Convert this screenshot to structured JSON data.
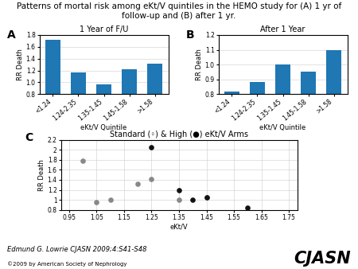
{
  "title": "Patterns of mortal risk among eKt/V quintiles in the HEMO study for (A) 1 yr of follow-up and (B) after 1 yr.",
  "annotations": [
    "Edmund G. Lowrie CJASN 2009;4:S41-S48",
    "CJASN",
    "©2009 by American Society of Nephrology"
  ],
  "chart_data": [
    {
      "type": "bar",
      "title": "1 Year of F/U",
      "annotations": [
        "A"
      ],
      "xlabel": "eKt/V Quintile",
      "ylabel": "RR Death",
      "categories": [
        "<1.24",
        "1.24-2.35",
        "1.35-1.45",
        "1.45-1.58",
        ">1.58"
      ],
      "values": [
        1.72,
        1.17,
        0.97,
        1.22,
        1.32
      ],
      "ylim": [
        0.8,
        1.8
      ],
      "yticks": [
        0.8,
        1.0,
        1.2,
        1.4,
        1.6,
        1.8
      ],
      "grid": "y"
    },
    {
      "type": "bar",
      "title": "After 1 Year",
      "annotations": [
        "B"
      ],
      "xlabel": "eKt/V Quintile",
      "ylabel": "RR Death",
      "categories": [
        "<1.24",
        "1.24-2.35",
        "1.35-1.45",
        "1.45-1.58",
        ">1.58"
      ],
      "values": [
        0.82,
        0.88,
        1.0,
        0.95,
        1.1
      ],
      "ylim": [
        0.8,
        1.2
      ],
      "yticks": [
        0.8,
        0.9,
        1.0,
        1.1,
        1.2
      ],
      "grid": "y"
    },
    {
      "type": "scatter",
      "title": "Standard (◦) & High (●) eKt/V Arms",
      "annotations": [
        "C"
      ],
      "xlabel": "eKt/V",
      "ylabel": "RR Death",
      "series": [
        {
          "color": "#888888",
          "x": [
            1.0,
            1.05,
            1.1,
            1.2,
            1.25,
            1.35,
            1.45
          ],
          "values": [
            1.78,
            0.95,
            1.0,
            1.32,
            1.42,
            1.0,
            1.05
          ]
        },
        {
          "color": "#111111",
          "x": [
            1.25,
            1.35,
            1.4,
            1.45,
            1.6
          ],
          "values": [
            2.05,
            1.2,
            1.0,
            1.05,
            0.85
          ]
        }
      ],
      "xlim": [
        0.92,
        1.78
      ],
      "xticks": [
        0.95,
        1.05,
        1.15,
        1.25,
        1.35,
        1.45,
        1.55,
        1.65,
        1.75
      ],
      "ylim": [
        0.8,
        2.2
      ],
      "yticks": [
        0.8,
        1,
        1.2,
        1.4,
        1.6,
        1.8,
        2,
        2.2
      ],
      "grid": true
    }
  ]
}
